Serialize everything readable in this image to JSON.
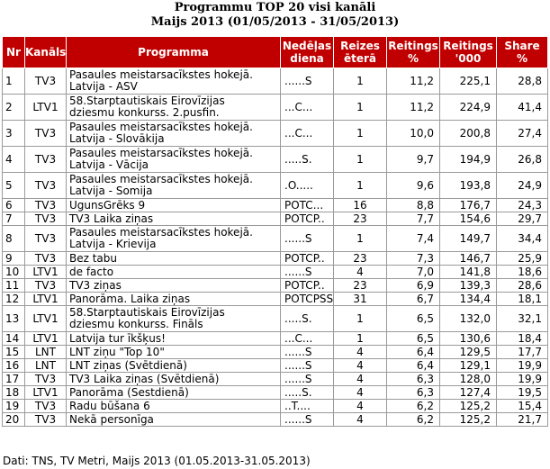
{
  "title_line1": "Programmu TOP 20 visi kanāli",
  "title_line2": "Maijs 2013 (01/05/2013 - 31/05/2013)",
  "headers": {
    "nr": "Nr",
    "channel": "Kanāls",
    "program": "Programma",
    "weekday_l1": "Nedēļas",
    "weekday_l2": "diena",
    "times_l1": "Reizes",
    "times_l2": "ēterā",
    "rating_pct_l1": "Reitings",
    "rating_pct_l2": "%",
    "rating_k_l1": "Reitings",
    "rating_k_l2": "'000",
    "share_l1": "Share",
    "share_l2": "%"
  },
  "rows": [
    {
      "nr": "1",
      "channel": "TV3",
      "program_l1": "Pasaules meistarsacīkstes hokejā.",
      "program_l2": "Latvija - ASV",
      "day": "......S",
      "times": "1",
      "rating_pct": "11,2",
      "rating_k": "225,1",
      "share": "28,8"
    },
    {
      "nr": "2",
      "channel": "LTV1",
      "program_l1": "58.Starptautiskais Eirovīzijas",
      "program_l2": "dziesmu konkurss. 2.pusfin.",
      "day": "...C...",
      "times": "1",
      "rating_pct": "11,2",
      "rating_k": "224,9",
      "share": "41,4"
    },
    {
      "nr": "3",
      "channel": "TV3",
      "program_l1": "Pasaules meistarsacīkstes hokejā.",
      "program_l2": "Latvija - Slovākija",
      "day": "...C...",
      "times": "1",
      "rating_pct": "10,0",
      "rating_k": "200,8",
      "share": "27,4"
    },
    {
      "nr": "4",
      "channel": "TV3",
      "program_l1": "Pasaules meistarsacīkstes hokejā.",
      "program_l2": "Latvija - Vācija",
      "day": ".....S.",
      "times": "1",
      "rating_pct": "9,7",
      "rating_k": "194,9",
      "share": "26,8"
    },
    {
      "nr": "5",
      "channel": "TV3",
      "program_l1": "Pasaules meistarsacīkstes hokejā.",
      "program_l2": "Latvija - Somija",
      "day": ".O.....",
      "times": "1",
      "rating_pct": "9,6",
      "rating_k": "193,8",
      "share": "24,9"
    },
    {
      "nr": "6",
      "channel": "TV3",
      "program_l1": "UgunsGrēks 9",
      "program_l2": "",
      "day": "POTC...",
      "times": "16",
      "rating_pct": "8,8",
      "rating_k": "176,7",
      "share": "24,3"
    },
    {
      "nr": "7",
      "channel": "TV3",
      "program_l1": "TV3 Laika ziņas",
      "program_l2": "",
      "day": "POTCP..",
      "times": "23",
      "rating_pct": "7,7",
      "rating_k": "154,6",
      "share": "29,7"
    },
    {
      "nr": "8",
      "channel": "TV3",
      "program_l1": "Pasaules meistarsacīkstes hokejā.",
      "program_l2": "Latvija - Krievija",
      "day": "......S",
      "times": "1",
      "rating_pct": "7,4",
      "rating_k": "149,7",
      "share": "34,4"
    },
    {
      "nr": "9",
      "channel": "TV3",
      "program_l1": "Bez tabu",
      "program_l2": "",
      "day": "POTCP..",
      "times": "23",
      "rating_pct": "7,3",
      "rating_k": "146,7",
      "share": "25,9"
    },
    {
      "nr": "10",
      "channel": "LTV1",
      "program_l1": "de facto",
      "program_l2": "",
      "day": "......S",
      "times": "4",
      "rating_pct": "7,0",
      "rating_k": "141,8",
      "share": "18,6"
    },
    {
      "nr": "11",
      "channel": "TV3",
      "program_l1": "TV3 ziņas",
      "program_l2": "",
      "day": "POTCP..",
      "times": "23",
      "rating_pct": "6,9",
      "rating_k": "139,3",
      "share": "28,6"
    },
    {
      "nr": "12",
      "channel": "LTV1",
      "program_l1": "Panorāma. Laika ziņas",
      "program_l2": "",
      "day": "POTCPSS",
      "times": "31",
      "rating_pct": "6,7",
      "rating_k": "134,4",
      "share": "18,1"
    },
    {
      "nr": "13",
      "channel": "LTV1",
      "program_l1": "58.Starptautiskais Eirovīzijas",
      "program_l2": "dziesmu konkurss. Fināls",
      "day": ".....S.",
      "times": "1",
      "rating_pct": "6,5",
      "rating_k": "132,0",
      "share": "32,1"
    },
    {
      "nr": "14",
      "channel": "LTV1",
      "program_l1": "Latvija tur īkšķus!",
      "program_l2": "",
      "day": "...C...",
      "times": "1",
      "rating_pct": "6,5",
      "rating_k": "130,6",
      "share": "18,4"
    },
    {
      "nr": "15",
      "channel": "LNT",
      "program_l1": "LNT ziņu \"Top 10\"",
      "program_l2": "",
      "day": "......S",
      "times": "4",
      "rating_pct": "6,4",
      "rating_k": "129,5",
      "share": "17,7"
    },
    {
      "nr": "16",
      "channel": "LNT",
      "program_l1": "LNT ziņas (Svētdienā)",
      "program_l2": "",
      "day": "......S",
      "times": "4",
      "rating_pct": "6,4",
      "rating_k": "129,1",
      "share": "19,9"
    },
    {
      "nr": "17",
      "channel": "TV3",
      "program_l1": "TV3 Laika ziņas (Svētdienā)",
      "program_l2": "",
      "day": "......S",
      "times": "4",
      "rating_pct": "6,3",
      "rating_k": "128,0",
      "share": "19,9"
    },
    {
      "nr": "18",
      "channel": "LTV1",
      "program_l1": "Panorāma (Sestdienā)",
      "program_l2": "",
      "day": ".....S.",
      "times": "4",
      "rating_pct": "6,3",
      "rating_k": "127,4",
      "share": "19,5"
    },
    {
      "nr": "19",
      "channel": "TV3",
      "program_l1": "Radu būšana 6",
      "program_l2": "",
      "day": "..T....",
      "times": "4",
      "rating_pct": "6,2",
      "rating_k": "125,2",
      "share": "15,4"
    },
    {
      "nr": "20",
      "channel": "TV3",
      "program_l1": "Nekā personīga",
      "program_l2": "",
      "day": "......S",
      "times": "4",
      "rating_pct": "6,2",
      "rating_k": "125,2",
      "share": "21,7"
    }
  ],
  "source": "Dati: TNS, TV Metri, Maijs 2013 (01.05.2013-31.05.2013)"
}
